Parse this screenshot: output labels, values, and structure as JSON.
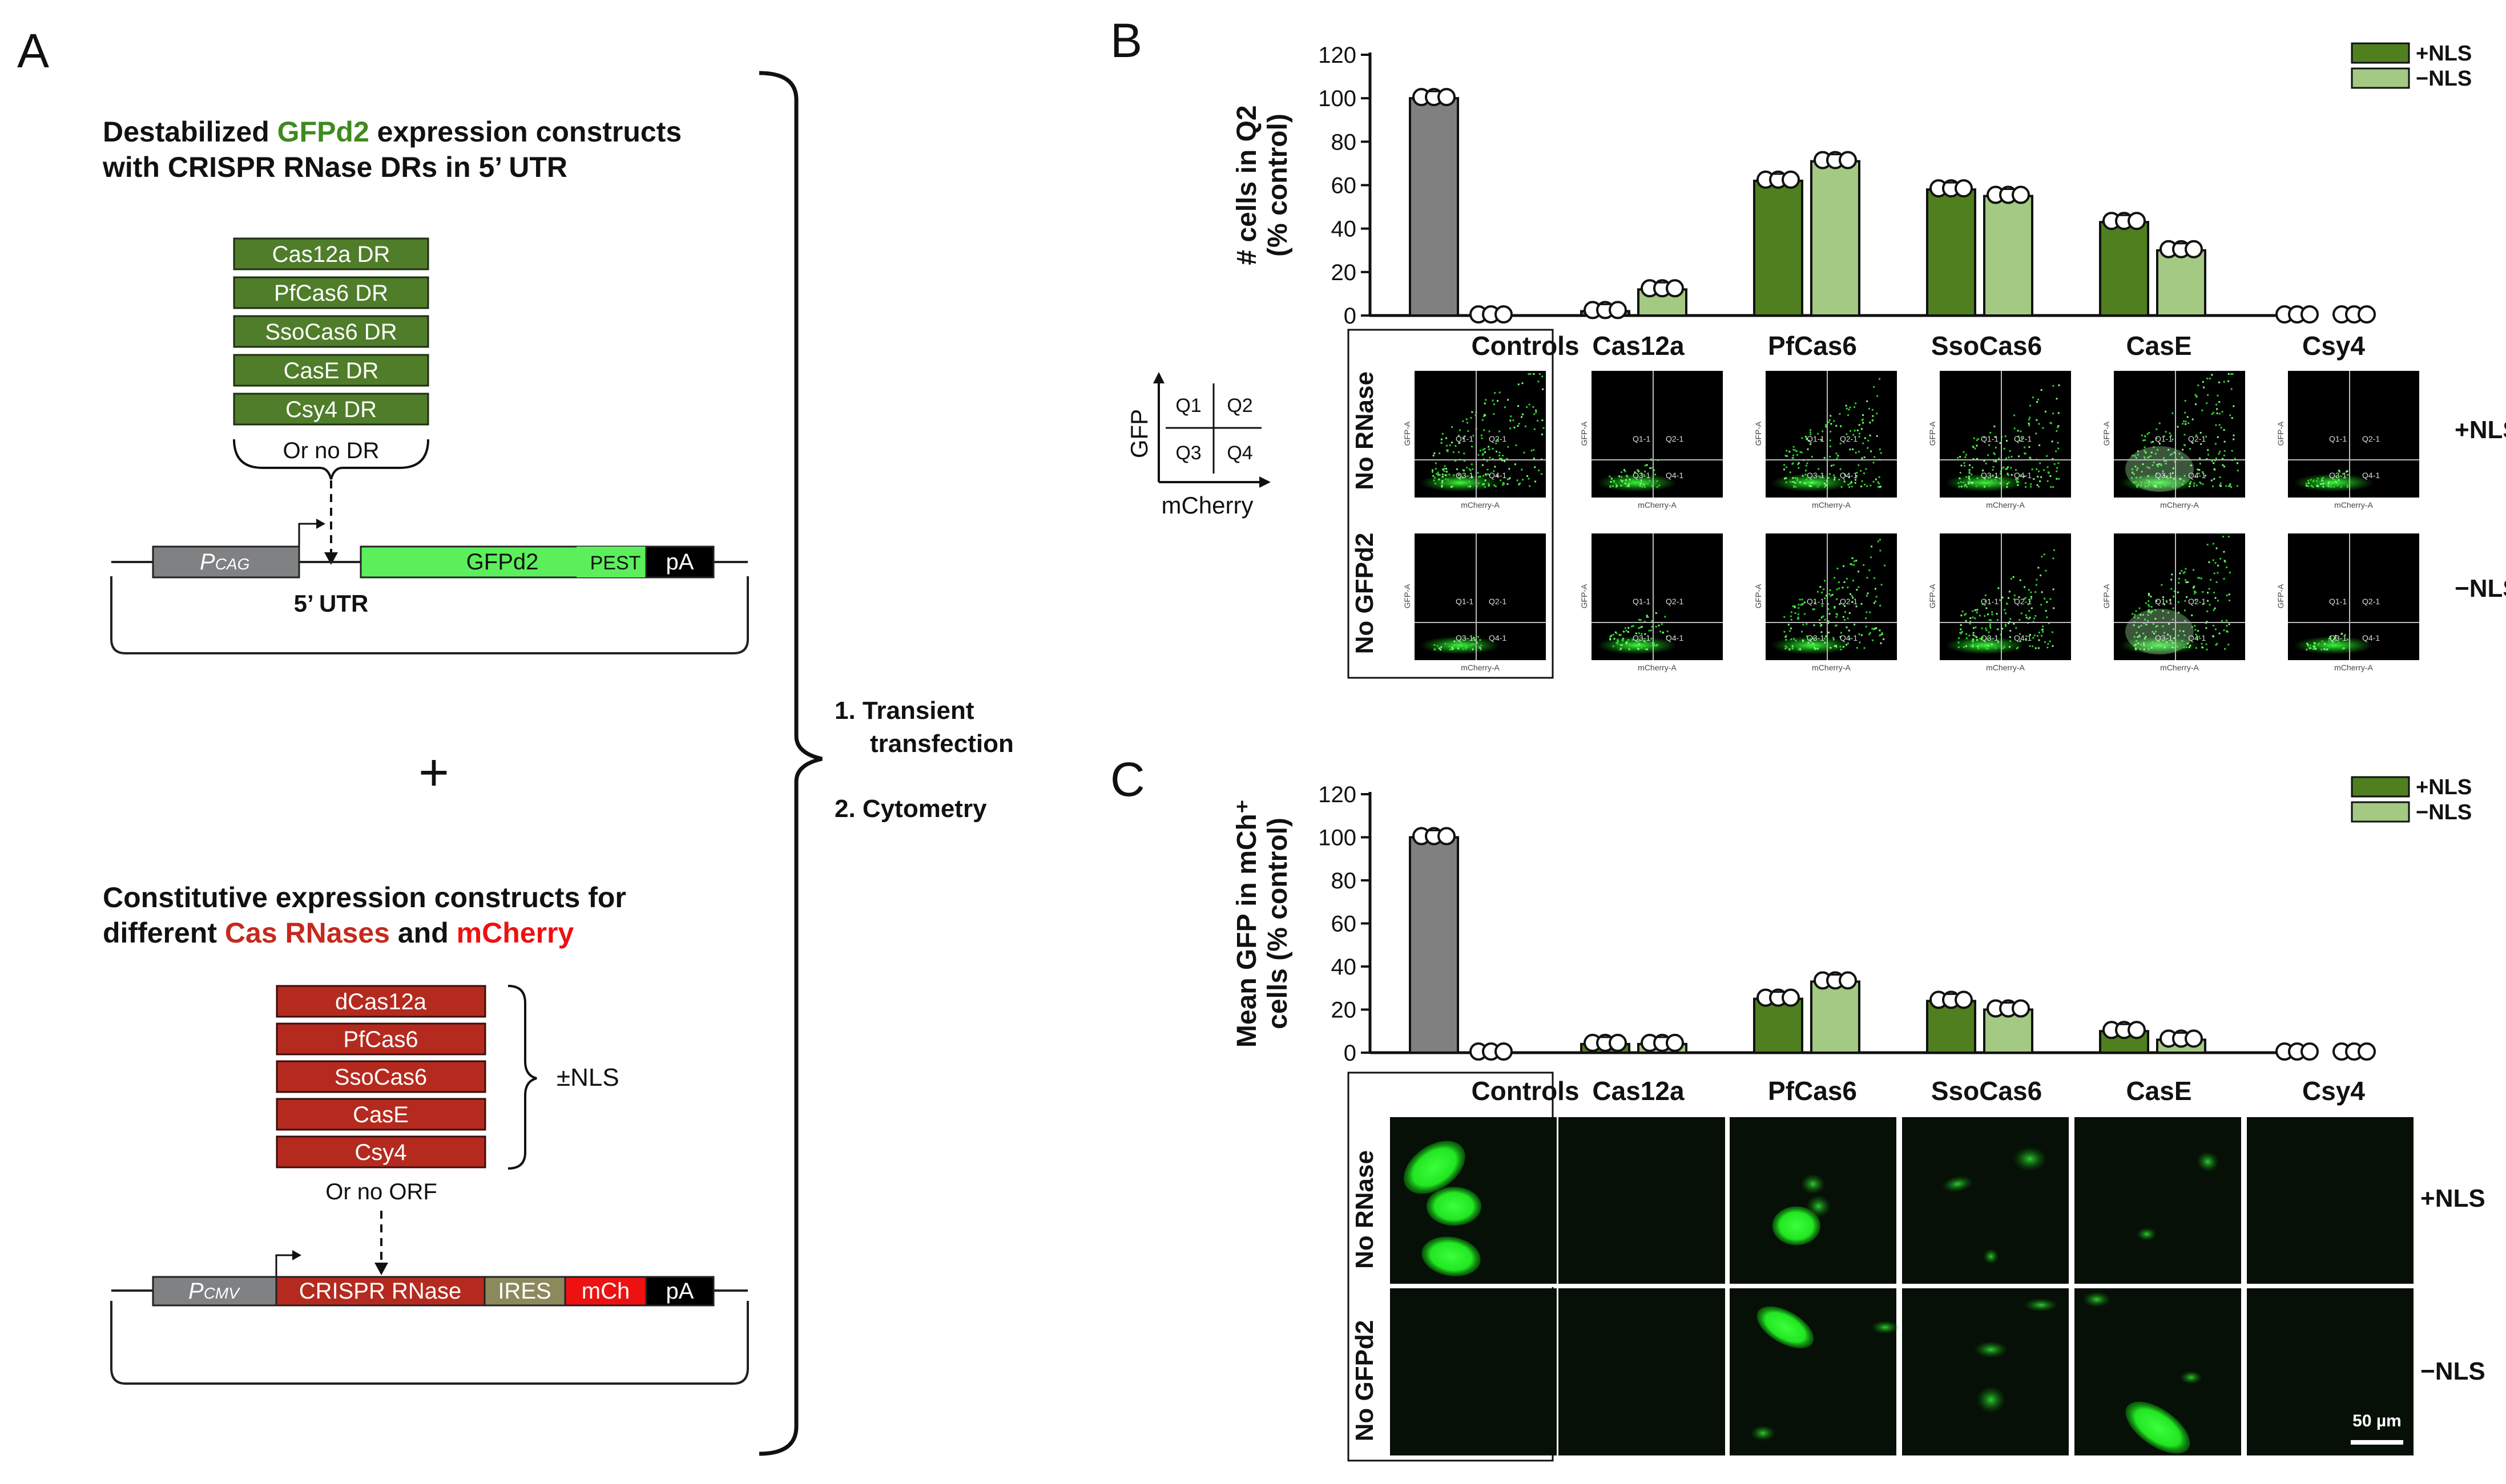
{
  "colors": {
    "green_dark": "#4f7f1e",
    "green_light": "#a3c983",
    "control_gray": "#808080",
    "dr_box": "#4f7d2a",
    "rnase_box": "#b52a1f",
    "gfp_green": "#5bf05b",
    "mcherry_red": "#ee1111",
    "ires": "#8c8a5c",
    "promoter_gray": "#7f8183",
    "text_green": "#3e8a1e",
    "text_red": "#c42a1d"
  },
  "panels": {
    "A": "A",
    "B": "B",
    "C": "C"
  },
  "panelA": {
    "reporter_heading": {
      "line1_pre": "Destabilized ",
      "line1_colored": "GFPd2",
      "line1_post": " expression constructs",
      "line2": "with CRISPR RNase DRs in 5’ UTR"
    },
    "dr_items": [
      "Cas12a DR",
      "PfCas6 DR",
      "SsoCas6 DR",
      "CasE DR",
      "Csy4 DR"
    ],
    "or_no_dr": "Or no DR",
    "reporter_plasmid": {
      "promoter_main": "P",
      "promoter_sub": "CAG",
      "gfp": "GFPd2",
      "pest": "PEST",
      "pa": "pA",
      "utr": "5’ UTR"
    },
    "plus": "+",
    "rnase_heading": {
      "line1": "Constitutive expression constructs for",
      "line2_pre": "different ",
      "line2_colored1": "Cas RNases",
      "line2_mid": " and ",
      "line2_colored2": "mCherry"
    },
    "rnase_items": [
      "dCas12a",
      "PfCas6",
      "SsoCas6",
      "CasE",
      "Csy4"
    ],
    "nls_label": "±NLS",
    "or_no_orf": "Or no ORF",
    "rnase_plasmid": {
      "promoter_main": "P",
      "promoter_sub": "CMV",
      "rnase": "CRISPR RNase",
      "ires": "IRES",
      "mch": "mCh",
      "pa": "pA"
    },
    "steps": {
      "step1_line1": "1.  Transient",
      "step1_line2": "transfection",
      "step2": "2.  Cytometry"
    }
  },
  "column_labels": [
    "Controls",
    "Cas12a",
    "PfCas6",
    "SsoCas6",
    "CasE",
    "Csy4"
  ],
  "row_labels": {
    "row1_left": "No RNase",
    "row2_left": "No GFPd2",
    "row1_right": "+NLS",
    "row2_right": "−NLS"
  },
  "quadrant_key": {
    "q1": "Q1",
    "q2": "Q2",
    "q3": "Q3",
    "q4": "Q4",
    "y_axis": "GFP",
    "x_axis": "mCherry"
  },
  "flow_plot_labels": {
    "y": "GFP-A",
    "x": "mCherry-A",
    "gate_q1": "Q1-1",
    "gate_q2": "Q2-1",
    "gate_q3": "Q3-1",
    "gate_q4": "Q4-1"
  },
  "scale_bar": "50 µm",
  "chart_data": [
    {
      "type": "bar",
      "panel": "B",
      "ylabel_line1": "# cells in Q2",
      "ylabel_line2": "(% control)",
      "ylim": [
        0,
        120
      ],
      "yticks": [
        "0",
        "20",
        "40",
        "60",
        "80",
        "100",
        "120"
      ],
      "legend": [
        "+NLS",
        "−NLS"
      ],
      "legend_position": "top-right",
      "control_value": 100,
      "control_no_gfp_value": 0,
      "series": [
        {
          "name": "+NLS",
          "values": [
            2,
            62,
            58,
            43,
            0
          ]
        },
        {
          "name": "−NLS",
          "values": [
            12,
            71,
            55,
            30,
            0
          ]
        }
      ],
      "categories": [
        "Cas12a",
        "PfCas6",
        "SsoCas6",
        "CasE",
        "Csy4"
      ]
    },
    {
      "type": "bar",
      "panel": "C",
      "ylabel_line1": "Mean GFP in mCh⁺",
      "ylabel_line2": "cells (% control)",
      "ylim": [
        0,
        120
      ],
      "yticks": [
        "0",
        "20",
        "40",
        "60",
        "80",
        "100",
        "120"
      ],
      "legend": [
        "+NLS",
        "−NLS"
      ],
      "legend_position": "top-right",
      "control_value": 100,
      "control_no_gfp_value": 0,
      "series": [
        {
          "name": "+NLS",
          "values": [
            4,
            25,
            24,
            10,
            0
          ]
        },
        {
          "name": "−NLS",
          "values": [
            4,
            33,
            20,
            6,
            0
          ]
        }
      ],
      "categories": [
        "Cas12a",
        "PfCas6",
        "SsoCas6",
        "CasE",
        "Csy4"
      ]
    }
  ]
}
